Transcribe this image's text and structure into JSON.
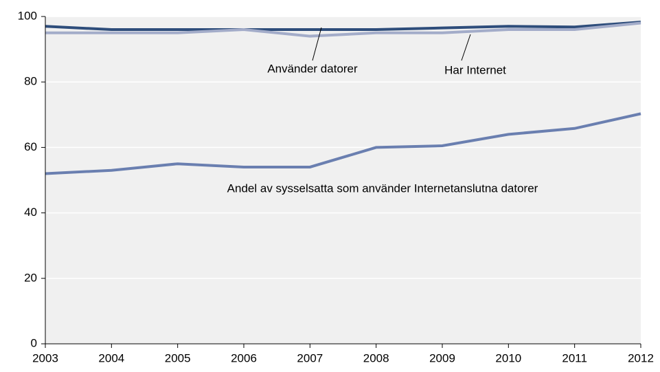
{
  "chart_data": {
    "type": "line",
    "x": [
      2003,
      2004,
      2005,
      2006,
      2007,
      2008,
      2009,
      2010,
      2011,
      2012
    ],
    "xlim": [
      2003,
      2012
    ],
    "xticks": [
      2003,
      2004,
      2005,
      2006,
      2007,
      2008,
      2009,
      2010,
      2011,
      2012
    ],
    "ylim": [
      0,
      100
    ],
    "yticks": [
      0,
      20,
      40,
      60,
      80,
      100
    ],
    "grid": true,
    "series": [
      {
        "name": "Använder datorer",
        "color": "#2e4d7b",
        "values": [
          97,
          96,
          96,
          96,
          96,
          96,
          96.5,
          97,
          96.8,
          98.3
        ]
      },
      {
        "name": "Har Internet",
        "color": "#a3acc9",
        "values": [
          95,
          95,
          95,
          96,
          94,
          95,
          95,
          96,
          96,
          98
        ]
      },
      {
        "name": "Andel av sysselsatta som använder Internetanslutna datorer",
        "color": "#6a7fb0",
        "values": [
          52,
          53,
          55,
          54,
          54,
          60,
          60.5,
          64,
          65.8,
          70.3
        ]
      }
    ]
  }
}
